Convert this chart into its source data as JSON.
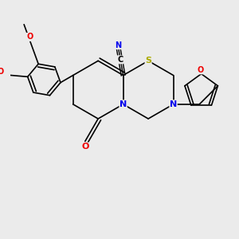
{
  "bg_color": "#ebebeb",
  "bond_color": "#000000",
  "bond_width": 1.2,
  "atom_colors": {
    "N": "#0000ee",
    "O": "#ee0000",
    "S": "#aaaa00",
    "C": "#000000"
  },
  "font_size_atom": 7,
  "figsize": [
    3.0,
    3.0
  ],
  "dpi": 100
}
